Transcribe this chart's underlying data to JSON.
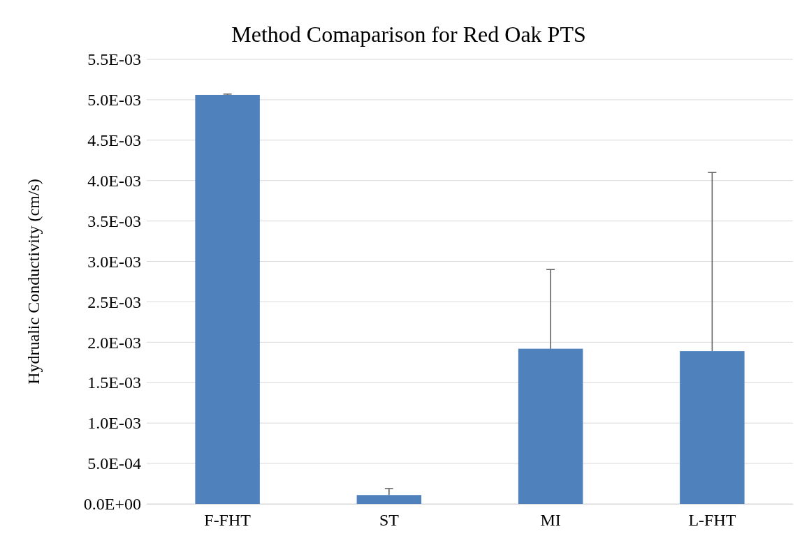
{
  "chart_data": {
    "type": "bar",
    "title": "Method Comaparison for Red Oak PTS",
    "ylabel": "Hydrualic Conductivity (cm/s)",
    "categories": [
      "F-FHT",
      "ST",
      "MI",
      "L-FHT"
    ],
    "values": [
      0.00506,
      0.00011,
      0.00192,
      0.00189
    ],
    "errors": [
      [
        0.00506,
        0.00507
      ],
      [
        0.00011,
        0.00019
      ],
      [
        0.00192,
        0.0029
      ],
      [
        0.00189,
        0.0041
      ]
    ],
    "color": "#4f81bd",
    "ylim": [
      0,
      0.0055
    ],
    "yticks": [
      {
        "value": 0,
        "label": "0.0E+00"
      },
      {
        "value": 0.0005,
        "label": "5.0E-04"
      },
      {
        "value": 0.001,
        "label": "1.0E-03"
      },
      {
        "value": 0.0015,
        "label": "1.5E-03"
      },
      {
        "value": 0.002,
        "label": "2.0E-03"
      },
      {
        "value": 0.0025,
        "label": "2.5E-03"
      },
      {
        "value": 0.003,
        "label": "3.0E-03"
      },
      {
        "value": 0.0035,
        "label": "3.5E-03"
      },
      {
        "value": 0.004,
        "label": "4.0E-03"
      },
      {
        "value": 0.0045,
        "label": "4.5E-03"
      },
      {
        "value": 0.005,
        "label": "5.0E-03"
      },
      {
        "value": 0.0055,
        "label": "5.5E-03"
      }
    ],
    "grid": "y"
  }
}
